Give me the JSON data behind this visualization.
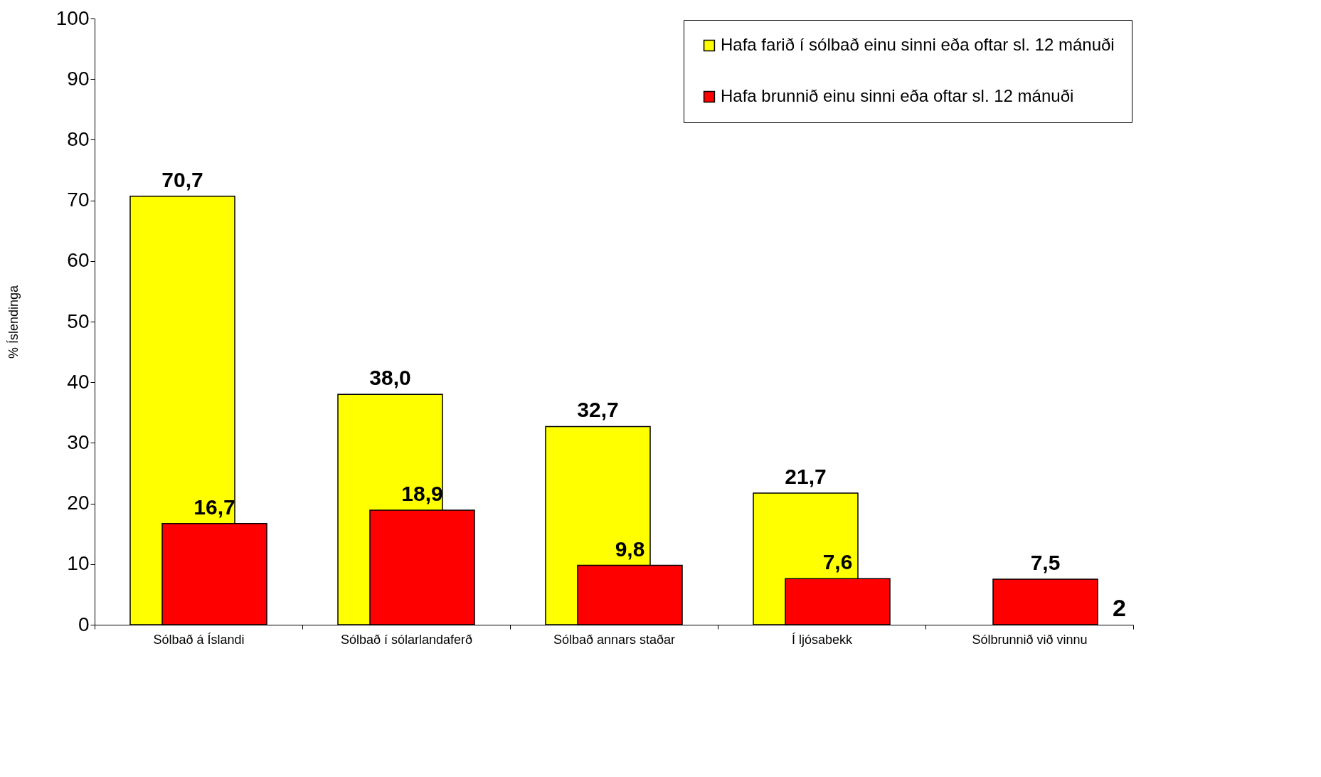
{
  "chart_data": {
    "type": "bar",
    "ylabel": "% Íslendinga",
    "categories": [
      "Sólbað á Íslandi",
      "Sólbað í sólarlandaferð",
      "Sólbað annars staðar",
      "Í ljósabekk",
      "Sólbrunnið við vinnu"
    ],
    "series": [
      {
        "name": "Hafa farið í sólbað einu sinni eða oftar sl. 12 mánuði",
        "color": "#ffff00",
        "values": [
          70.7,
          38.0,
          32.7,
          21.7,
          null
        ],
        "value_labels": [
          "70,7",
          "38,0",
          "32,7",
          "21,7",
          null
        ]
      },
      {
        "name": "Hafa brunnið einu sinni eða oftar sl. 12 mánuði",
        "color": "#ff0000",
        "values": [
          16.7,
          18.9,
          9.8,
          7.6,
          7.5
        ],
        "value_labels": [
          "16,7",
          "18,9",
          "9,8",
          "7,6",
          "7,5"
        ]
      }
    ],
    "annotations": [
      "2"
    ],
    "ylim": [
      0,
      100
    ],
    "yticks": [
      0,
      10,
      20,
      30,
      40,
      50,
      60,
      70,
      80,
      90,
      100
    ],
    "grid": false,
    "legend": "top right"
  }
}
